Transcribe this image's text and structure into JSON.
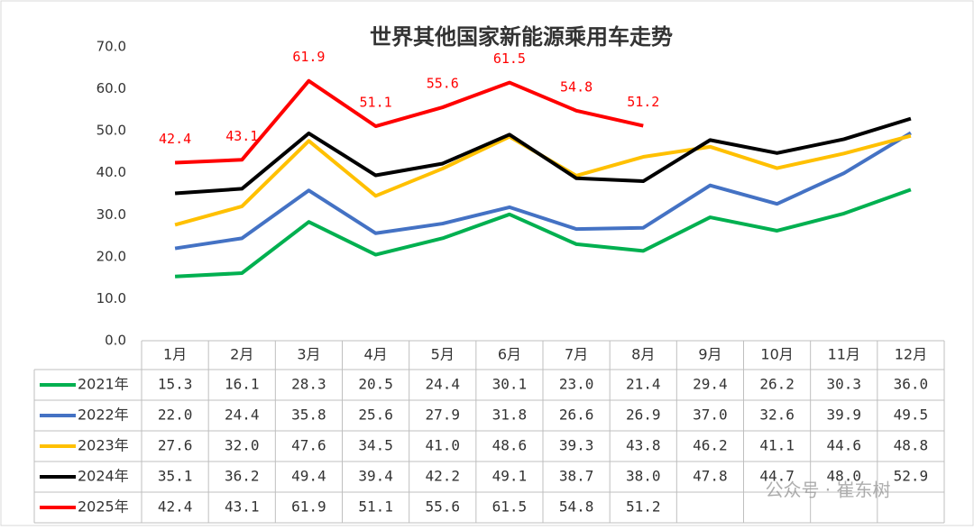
{
  "chart_data": {
    "type": "line",
    "title": "世界其他国家新能源乘用车走势",
    "categories": [
      "1月",
      "2月",
      "3月",
      "4月",
      "5月",
      "6月",
      "7月",
      "8月",
      "9月",
      "10月",
      "11月",
      "12月"
    ],
    "ylim": [
      0,
      70
    ],
    "yticks": [
      {
        "value": 0,
        "label": "0.0"
      },
      {
        "value": 10,
        "label": "10.0"
      },
      {
        "value": 20,
        "label": "20.0"
      },
      {
        "value": 30,
        "label": "30.0"
      },
      {
        "value": 40,
        "label": "40.0"
      },
      {
        "value": 50,
        "label": "50.0"
      },
      {
        "value": 60,
        "label": "60.0"
      },
      {
        "value": 70,
        "label": "70.0"
      }
    ],
    "grid": false,
    "series": [
      {
        "name": "2021年",
        "color": "#00b050",
        "values": [
          15.3,
          16.1,
          28.3,
          20.5,
          24.4,
          30.1,
          23.0,
          21.4,
          29.4,
          26.2,
          30.3,
          36.0
        ],
        "value_labels": [
          "15.3",
          "16.1",
          "28.3",
          "20.5",
          "24.4",
          "30.1",
          "23.0",
          "21.4",
          "29.4",
          "26.2",
          "30.3",
          "36.0"
        ]
      },
      {
        "name": "2022年",
        "color": "#4472c4",
        "values": [
          22.0,
          24.4,
          35.8,
          25.6,
          27.9,
          31.8,
          26.6,
          26.9,
          37.0,
          32.6,
          39.9,
          49.5
        ],
        "value_labels": [
          "22.0",
          "24.4",
          "35.8",
          "25.6",
          "27.9",
          "31.8",
          "26.6",
          "26.9",
          "37.0",
          "32.6",
          "39.9",
          "49.5"
        ]
      },
      {
        "name": "2023年",
        "color": "#ffc000",
        "values": [
          27.6,
          32.0,
          47.6,
          34.5,
          41.0,
          48.6,
          39.3,
          43.8,
          46.2,
          41.1,
          44.6,
          48.8
        ],
        "value_labels": [
          "27.6",
          "32.0",
          "47.6",
          "34.5",
          "41.0",
          "48.6",
          "39.3",
          "43.8",
          "46.2",
          "41.1",
          "44.6",
          "48.8"
        ]
      },
      {
        "name": "2024年",
        "color": "#000000",
        "values": [
          35.1,
          36.2,
          49.4,
          39.4,
          42.2,
          49.1,
          38.7,
          38.0,
          47.8,
          44.7,
          48.0,
          52.9
        ],
        "value_labels": [
          "35.1",
          "36.2",
          "49.4",
          "39.4",
          "42.2",
          "49.1",
          "38.7",
          "38.0",
          "47.8",
          "44.7",
          "48.0",
          "52.9"
        ]
      },
      {
        "name": "2025年",
        "color": "#ff0000",
        "values": [
          42.4,
          43.1,
          61.9,
          51.1,
          55.6,
          61.5,
          54.8,
          51.2,
          null,
          null,
          null,
          null
        ],
        "value_labels": [
          "42.4",
          "43.1",
          "61.9",
          "51.1",
          "55.6",
          "61.5",
          "54.8",
          "51.2",
          null,
          null,
          null,
          null
        ],
        "data_labels": true
      }
    ],
    "watermark": "公众号 · 崔东树"
  }
}
